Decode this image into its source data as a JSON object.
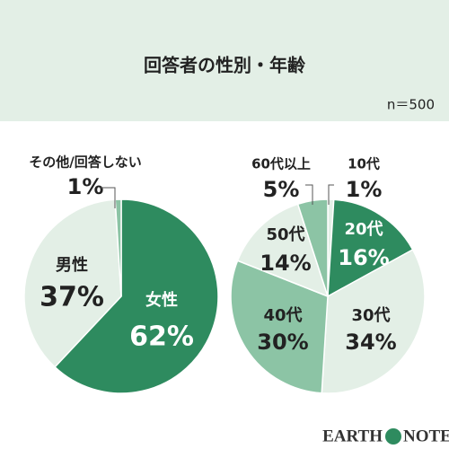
{
  "header": {
    "title": "回答者の性別・年齢",
    "note": "n＝500"
  },
  "chart_data": [
    {
      "type": "pie",
      "categories": [
        "女性",
        "男性",
        "その他/回答しない"
      ],
      "values": [
        62,
        37,
        1
      ],
      "value_labels": [
        "62%",
        "37%",
        "1%"
      ],
      "colors": [
        "#2e8b5f",
        "#e3efe6",
        "#8cc4a5"
      ]
    },
    {
      "type": "pie",
      "categories": [
        "10代",
        "20代",
        "30代",
        "40代",
        "50代",
        "60代以上"
      ],
      "values": [
        1,
        16,
        34,
        30,
        14,
        5
      ],
      "value_labels": [
        "1%",
        "16%",
        "34%",
        "30%",
        "14%",
        "5%"
      ],
      "colors": [
        "#e3efe6",
        "#2e8b5f",
        "#e3efe6",
        "#8cc4a5",
        "#e3efe6",
        "#8cc4a5"
      ]
    }
  ],
  "brand": {
    "left": "EARTH",
    "right": "NOTE"
  }
}
